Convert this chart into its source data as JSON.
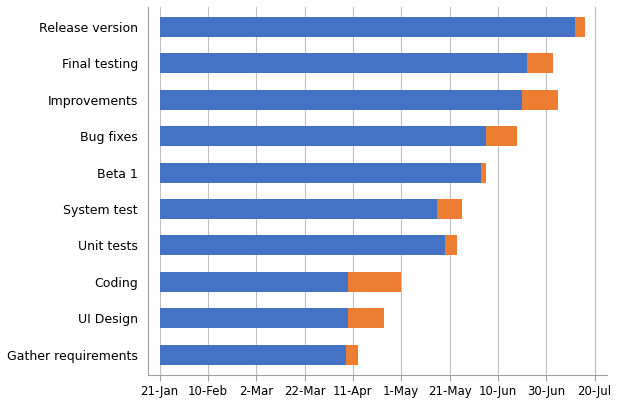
{
  "tasks": [
    "Gather requirements",
    "UI Design",
    "Coding",
    "Unit tests",
    "System test",
    "Beta 1",
    "Bug fixes",
    "Improvements",
    "Final testing",
    "Release version"
  ],
  "start_days": [
    20,
    20,
    20,
    20,
    20,
    20,
    20,
    20,
    20,
    20
  ],
  "blue_end": [
    97,
    98,
    98,
    138,
    135,
    153,
    155,
    170,
    172,
    192
  ],
  "total_end": [
    102,
    113,
    120,
    143,
    145,
    155,
    168,
    185,
    183,
    196
  ],
  "x_ticks": [
    20,
    40,
    60,
    80,
    100,
    120,
    140,
    160,
    180,
    200
  ],
  "x_tick_labels": [
    "21-Jan",
    "10-Feb",
    "2-Mar",
    "22-Mar",
    "11-Apr",
    "1-May",
    "21-May",
    "10-Jun",
    "30-Jun",
    "20-Jul"
  ],
  "xlim": [
    15,
    205
  ],
  "blue_color": "#4472C4",
  "orange_color": "#ED7D31",
  "bg_color": "#FFFFFF",
  "grid_color": "#BFBFBF",
  "bar_height": 0.55,
  "label_fontsize": 9,
  "tick_fontsize": 8.5
}
